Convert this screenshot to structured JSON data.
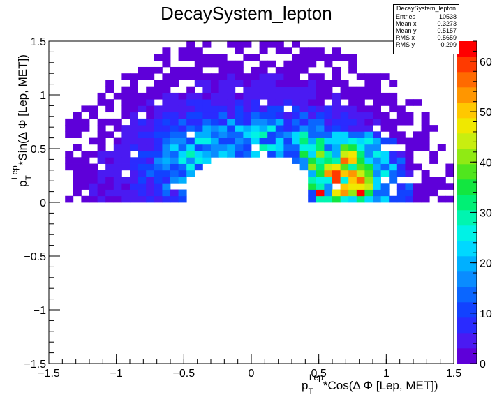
{
  "chart_data": {
    "type": "heatmap",
    "title": "DecaySystem_lepton",
    "xlabel": {
      "main": "p",
      "sub": "T",
      "sup": "Lep",
      "rest": "*Cos(Δ Φ [Lep, MET])"
    },
    "ylabel": {
      "main": "p",
      "sub": "T",
      "sup": "Lep",
      "rest": "*Sin(Δ Φ [Lep, MET])"
    },
    "xlim": [
      -1.5,
      1.5
    ],
    "ylim": [
      -1.5,
      1.5
    ],
    "x_ticks": [
      "−1.5",
      "−1",
      "−0.5",
      "0",
      "0.5",
      "1",
      "1.5"
    ],
    "x_tick_values": [
      -1.5,
      -1,
      -0.5,
      0,
      0.5,
      1,
      1.5
    ],
    "y_ticks": [
      "−1.5",
      "−1",
      "−0.5",
      "0",
      "0.5",
      "1",
      "1.5"
    ],
    "y_tick_values": [
      -1.5,
      -1,
      -0.5,
      0,
      0.5,
      1,
      1.5
    ],
    "z_ticks": [
      "0",
      "10",
      "20",
      "30",
      "40",
      "50",
      "60"
    ],
    "z_tick_values": [
      0,
      10,
      20,
      30,
      40,
      50,
      60
    ],
    "zlim": [
      0,
      64
    ],
    "bins": {
      "nx": 50,
      "ny": 50
    },
    "palette": [
      "#5e00d9",
      "#4a1af2",
      "#2a2bff",
      "#1242ff",
      "#0a66ff",
      "#0a8cff",
      "#00b0ff",
      "#00d8ff",
      "#00f2e6",
      "#00f5b0",
      "#00f075",
      "#12e640",
      "#50e61e",
      "#90ea14",
      "#c8ee10",
      "#f0e800",
      "#ffc800",
      "#ff9600",
      "#ff6a00",
      "#ff3a00",
      "#ff0000"
    ],
    "stats": {
      "name": "DecaySystem_lepton",
      "rows": [
        {
          "label": "Entries",
          "value": "10538"
        },
        {
          "label": "Mean x",
          "value": "0.3273"
        },
        {
          "label": "Mean y",
          "value": "0.5157"
        },
        {
          "label": "RMS x",
          "value": "0.5659"
        },
        {
          "label": "RMS y",
          "value": "0.299"
        }
      ]
    }
  }
}
